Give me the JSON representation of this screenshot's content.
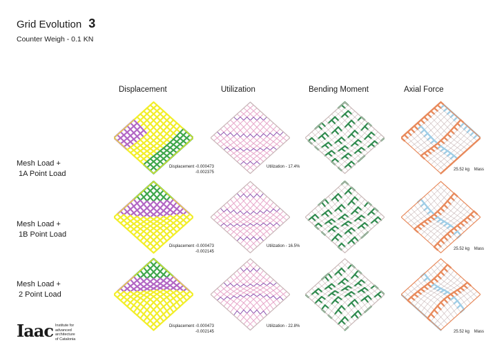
{
  "header": {
    "title": "Grid Evolution",
    "title_number": "3",
    "subtitle": "Counter Weigh - 0.1 KN"
  },
  "columns": [
    "Displacement",
    "Utilization",
    "Bending Moment",
    "Axial Force"
  ],
  "rows": [
    {
      "label_line1": "Mesh Load +",
      "label_line2": "1A Point Load",
      "displacement_line1": "Displacement -0.000473",
      "displacement_line2": "-0.002375",
      "utilization": "Utilization - 17.4%",
      "mass_value": "25.52 kg",
      "mass_label": "Mass"
    },
    {
      "label_line1": "Mesh Load +",
      "label_line2": "1B Point Load",
      "displacement_line1": "Displacement -0.000473",
      "displacement_line2": "-0.002145",
      "utilization": "Utilization - 16.5%",
      "mass_value": "25.52 kg",
      "mass_label": "Mass"
    },
    {
      "label_line1": "Mesh Load +",
      "label_line2": "2 Point Load",
      "displacement_line1": "Displacement -0.000473",
      "displacement_line2": "-0.002145",
      "utilization": "Utilization - 22.8%",
      "mass_value": "25.52 kg",
      "mass_label": "Mass"
    }
  ],
  "logo": {
    "mark": "Iaac",
    "line1": "Institute for",
    "line2": "advanced",
    "line3": "architecture",
    "line4": "of Catalonia"
  },
  "colors": {
    "displacement_yellow": "#f2ee2a",
    "displacement_green": "#3ea64a",
    "displacement_purple": "#b266c4",
    "utilization_pink": "#e7a6c9",
    "utilization_purple": "#8a4fae",
    "bending_green": "#2f8a4e",
    "bending_orange": "#e39a50",
    "axial_orange": "#e88a5c",
    "axial_blue": "#9fcde6",
    "grid_line": "#c9b8b8"
  }
}
